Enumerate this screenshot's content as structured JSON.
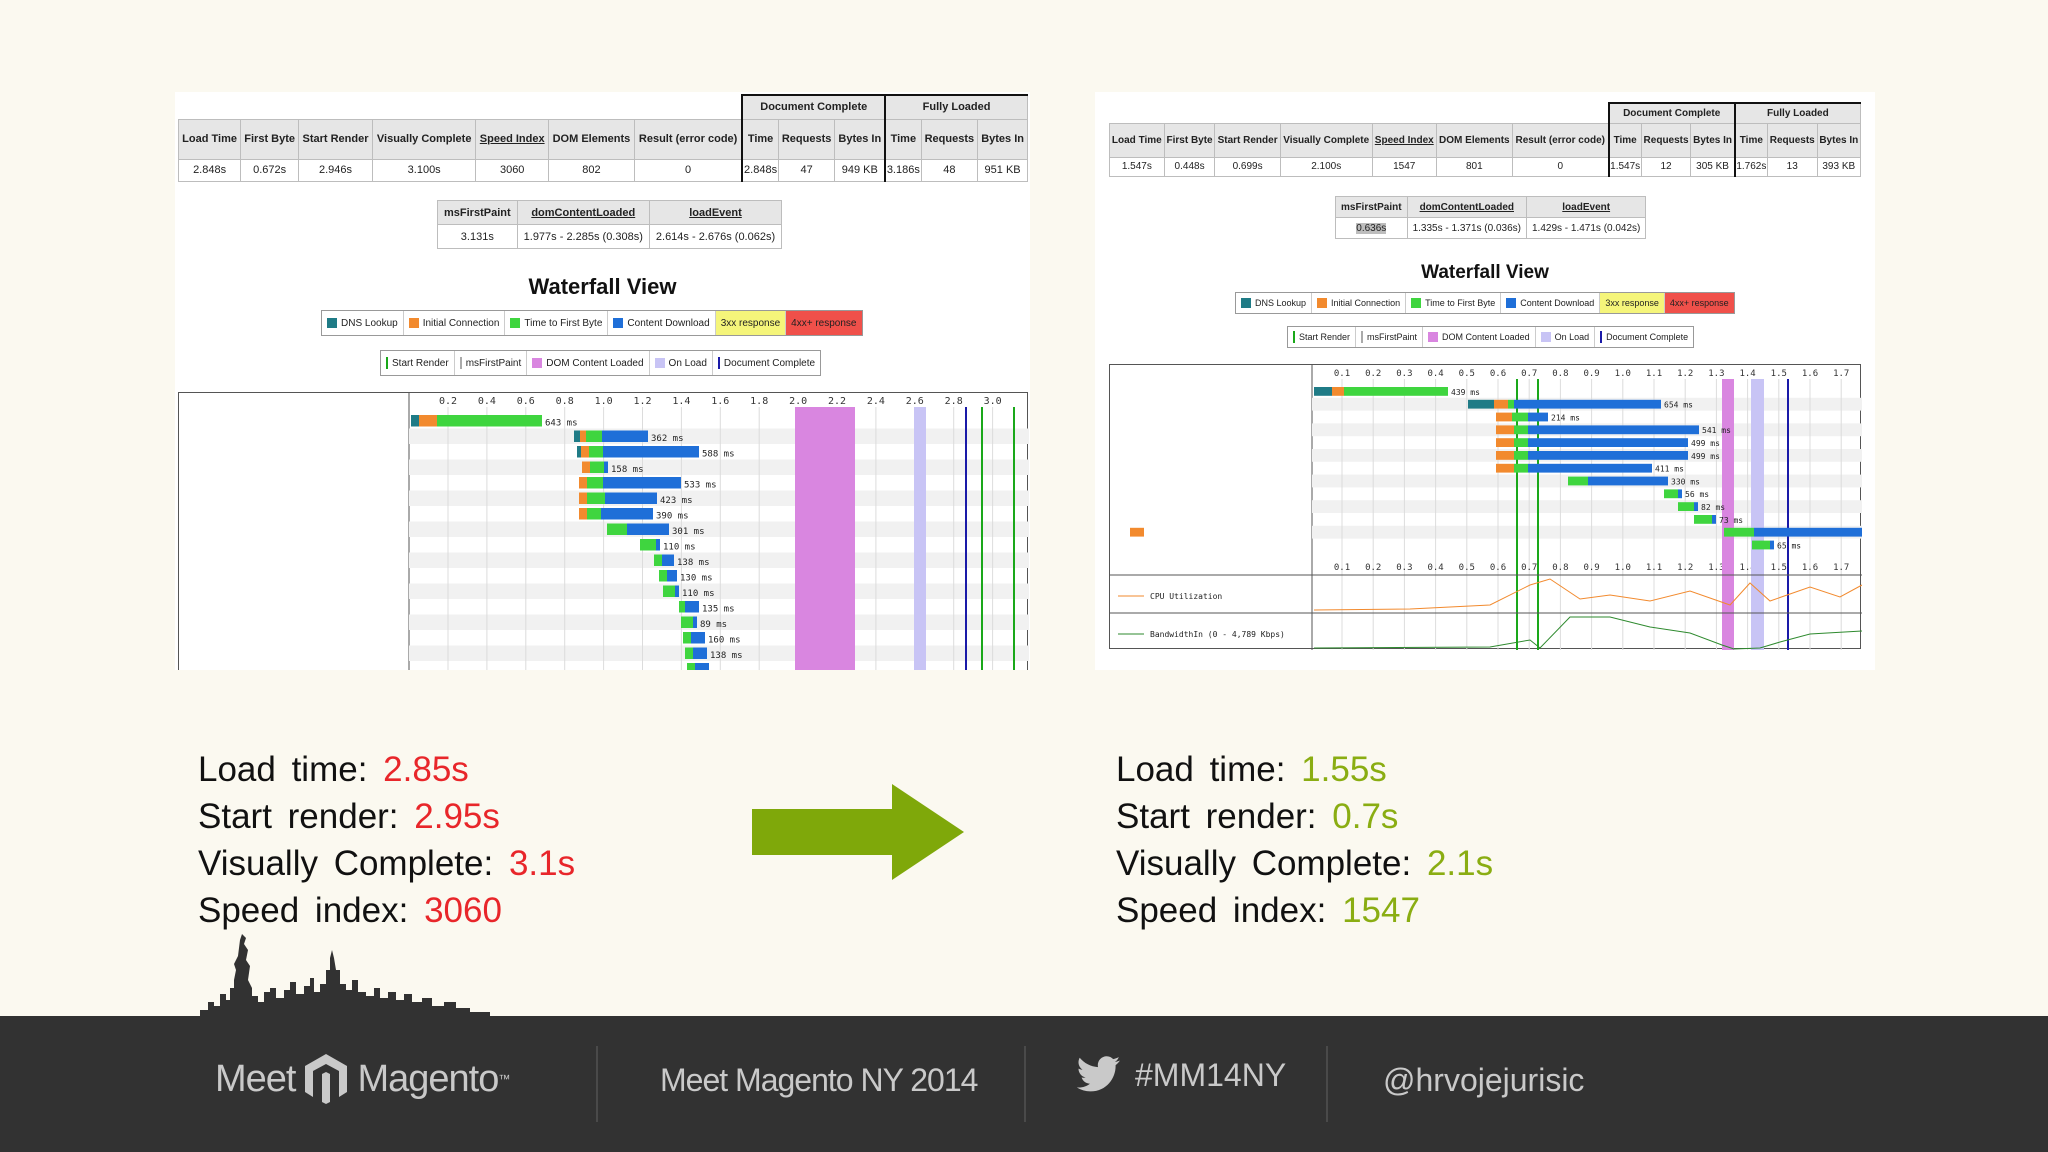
{
  "before": {
    "metrics": {
      "group_headers": [
        "Document Complete",
        "Fully Loaded"
      ],
      "columns": [
        "Load Time",
        "First Byte",
        "Start Render",
        "Visually Complete",
        "Speed Index",
        "DOM Elements",
        "Result (error code)",
        "Time",
        "Requests",
        "Bytes In",
        "Time",
        "Requests",
        "Bytes In"
      ],
      "values": [
        "2.848s",
        "0.672s",
        "2.946s",
        "3.100s",
        "3060",
        "802",
        "0",
        "2.848s",
        "47",
        "949 KB",
        "3.186s",
        "48",
        "951 KB"
      ]
    },
    "events": {
      "headers": [
        "msFirstPaint",
        "domContentLoaded",
        "loadEvent"
      ],
      "values": [
        "3.131s",
        "1.977s - 2.285s (0.308s)",
        "2.614s - 2.676s (0.062s)"
      ]
    },
    "waterfall_title": "Waterfall View",
    "axis_ticks": [
      "0.2",
      "0.4",
      "0.6",
      "0.8",
      "1.0",
      "1.2",
      "1.4",
      "1.6",
      "1.8",
      "2.0",
      "2.2",
      "2.4",
      "2.6",
      "2.8",
      "3.0"
    ],
    "bar_labels": [
      "643 ms",
      "362 ms",
      "588 ms",
      "158 ms",
      "533 ms",
      "423 ms",
      "390 ms",
      "301 ms",
      "110 ms",
      "138 ms",
      "130 ms",
      "110 ms",
      "135 ms",
      "89 ms",
      "160 ms",
      "138 ms"
    ]
  },
  "after": {
    "metrics": {
      "group_headers": [
        "Document Complete",
        "Fully Loaded"
      ],
      "columns": [
        "Load Time",
        "First Byte",
        "Start Render",
        "Visually Complete",
        "Speed Index",
        "DOM Elements",
        "Result (error code)",
        "Time",
        "Requests",
        "Bytes In",
        "Time",
        "Requests",
        "Bytes In"
      ],
      "values": [
        "1.547s",
        "0.448s",
        "0.699s",
        "2.100s",
        "1547",
        "801",
        "0",
        "1.547s",
        "12",
        "305 KB",
        "1.762s",
        "13",
        "393 KB"
      ]
    },
    "events": {
      "headers": [
        "msFirstPaint",
        "domContentLoaded",
        "loadEvent"
      ],
      "values": [
        "0.636s",
        "1.335s - 1.371s (0.036s)",
        "1.429s - 1.471s (0.042s)"
      ]
    },
    "waterfall_title": "Waterfall View",
    "axis_ticks": [
      "0.1",
      "0.2",
      "0.3",
      "0.4",
      "0.5",
      "0.6",
      "0.7",
      "0.8",
      "0.9",
      "1.0",
      "1.1",
      "1.2",
      "1.3",
      "1.4",
      "1.5",
      "1.6",
      "1.7"
    ],
    "bar_labels": [
      "439 ms",
      "654 ms",
      "214 ms",
      "541 ms",
      "499 ms",
      "499 ms",
      "411 ms",
      "330 ms",
      "56 ms",
      "82 ms",
      "73 ms",
      "65 ms"
    ],
    "cpu_label": "CPU Utilization",
    "bandwidth_label": "BandwidthIn (0 - 4,789 Kbps)"
  },
  "legend": {
    "top": [
      "DNS Lookup",
      "Initial Connection",
      "Time to First Byte",
      "Content Download",
      "3xx response",
      "4xx+ response"
    ],
    "bottom": [
      "Start Render",
      "msFirstPaint",
      "DOM Content Loaded",
      "On Load",
      "Document Complete"
    ]
  },
  "stats_before": {
    "load_label": "Load time:",
    "load_value": "2.85s",
    "render_label": "Start render:",
    "render_value": "2.95s",
    "visual_label": "Visually Complete:",
    "visual_value": "3.1s",
    "speed_label": "Speed index:",
    "speed_value": "3060"
  },
  "stats_after": {
    "load_label": "Load time:",
    "load_value": "1.55s",
    "render_label": "Start render:",
    "render_value": "0.7s",
    "visual_label": "Visually Complete:",
    "visual_value": "2.1s",
    "speed_label": "Speed index:",
    "speed_value": "1547"
  },
  "footer": {
    "brand_left": "Meet",
    "brand_right": "Magento",
    "event": "Meet Magento NY 2014",
    "hashtag": "#MM14NY",
    "handle": "@hrvojejurisic"
  },
  "colors": {
    "dns": "#1f7b86",
    "connect": "#f28a2e",
    "ttfb": "#3fd53f",
    "download": "#1f6fd8",
    "redirect": "#f5f57a",
    "error": "#f0504a",
    "dom": "#d986e0",
    "onload": "#c8c4f5",
    "start_render": "#1aa81a",
    "doc_complete": "#1a1aa8",
    "bad": "#e8262a",
    "good": "#8aad12",
    "arrow": "#7fa80a",
    "footer_bg": "#323232"
  },
  "icons": [
    "arrow-right-icon",
    "skyline-icon",
    "magento-logo-icon",
    "twitter-bird-icon"
  ]
}
